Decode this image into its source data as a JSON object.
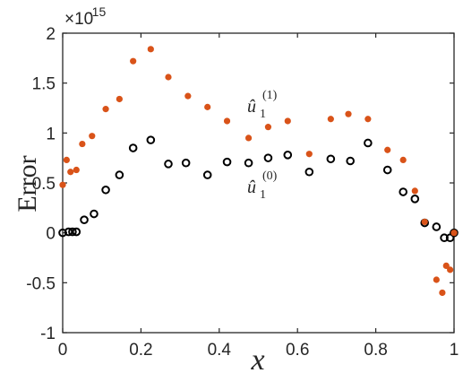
{
  "chart_data": {
    "type": "scatter",
    "title": "",
    "xlabel": "x",
    "ylabel": "Error",
    "xlim": [
      0,
      1
    ],
    "ylim": [
      -1,
      2
    ],
    "y_scale_factor": "×10",
    "y_scale_exponent": "-15",
    "xticks": [
      "0",
      "0.2",
      "0.4",
      "0.6",
      "0.8",
      "1"
    ],
    "yticks": [
      "-1",
      "-0.5",
      "0",
      "0.5",
      "1",
      "1.5",
      "2"
    ],
    "grid": false,
    "legend": "none",
    "annotations": [
      {
        "text": "û",
        "sub": "1",
        "sup": "(1)",
        "x": 0.455,
        "y": 1.27
      },
      {
        "text": "û",
        "sub": "1",
        "sup": "(0)",
        "x": 0.455,
        "y": 0.48
      }
    ],
    "series": [
      {
        "marker": "filled-circle",
        "color": "#d95319",
        "x": [
          0.0,
          0.01,
          0.02,
          0.035,
          0.05,
          0.075,
          0.11,
          0.145,
          0.18,
          0.225,
          0.27,
          0.32,
          0.37,
          0.42,
          0.475,
          0.525,
          0.575,
          0.63,
          0.685,
          0.73,
          0.78,
          0.83,
          0.87,
          0.9,
          0.925,
          0.955,
          0.97,
          0.98,
          0.99,
          1.0
        ],
        "y": [
          0.48,
          0.73,
          0.61,
          0.63,
          0.89,
          0.97,
          1.24,
          1.34,
          1.72,
          1.84,
          1.56,
          1.37,
          1.26,
          1.12,
          0.95,
          1.06,
          1.12,
          0.79,
          1.14,
          1.19,
          1.14,
          0.83,
          0.73,
          0.42,
          0.11,
          -0.47,
          -0.6,
          -0.33,
          -0.37,
          0.0
        ]
      },
      {
        "marker": "open-circle",
        "color": "#000000",
        "x": [
          0.0,
          0.015,
          0.025,
          0.035,
          0.055,
          0.08,
          0.11,
          0.145,
          0.18,
          0.225,
          0.27,
          0.315,
          0.37,
          0.42,
          0.475,
          0.525,
          0.575,
          0.63,
          0.685,
          0.735,
          0.78,
          0.83,
          0.87,
          0.9,
          0.925,
          0.955,
          0.975,
          0.99,
          1.0
        ],
        "y": [
          0.0,
          0.01,
          0.01,
          0.01,
          0.13,
          0.19,
          0.43,
          0.58,
          0.85,
          0.93,
          0.69,
          0.7,
          0.58,
          0.71,
          0.7,
          0.75,
          0.78,
          0.61,
          0.74,
          0.72,
          0.9,
          0.63,
          0.41,
          0.34,
          0.1,
          0.06,
          -0.05,
          -0.05,
          0.0
        ]
      }
    ]
  }
}
